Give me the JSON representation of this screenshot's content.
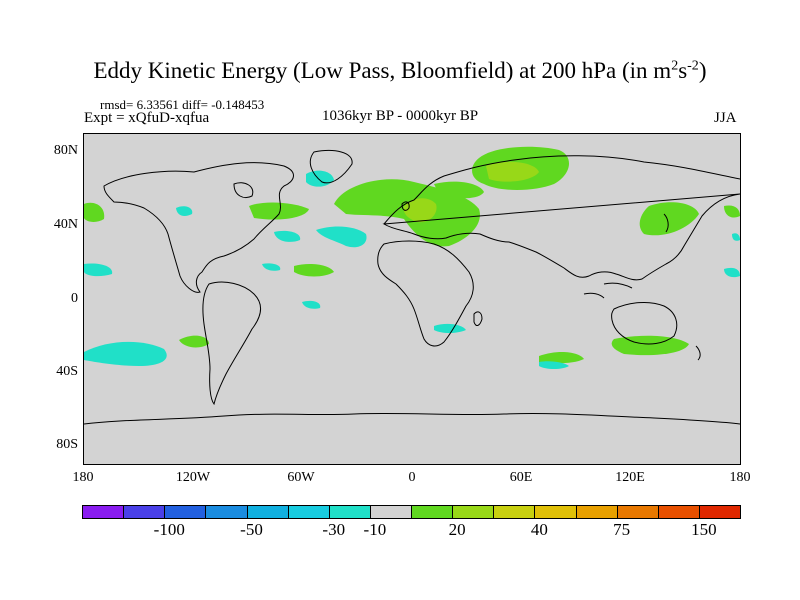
{
  "title": {
    "text": "Eddy Kinetic Energy (Low Pass, Bloomfield) at 200 hPa (in m",
    "exp1": "2",
    "mid": "s",
    "exp2": "-2",
    "close": ")"
  },
  "stats": "rmsd= 6.33561 diff= -0.148453",
  "expt": "Expt = xQfuD-xqfua",
  "period": "1036kyr BP - 0000kyr BP",
  "season": "JJA",
  "lat_labels": [
    "80N",
    "40N",
    "0",
    "40S",
    "80S"
  ],
  "lon_labels": [
    "180",
    "120W",
    "60W",
    "0",
    "60E",
    "120E",
    "180"
  ],
  "colorbar": {
    "colors": [
      "#8a1cf0",
      "#4a40e8",
      "#2260e0",
      "#1a8ce0",
      "#10b0e0",
      "#18cce0",
      "#20e0c8",
      "#d3d3d3",
      "#60d820",
      "#98d818",
      "#c8d010",
      "#e0c008",
      "#e8a000",
      "#e87800",
      "#e85000",
      "#e02800"
    ],
    "labels": [
      "-100",
      "-50",
      "-30",
      "-10",
      "20",
      "40",
      "75",
      "150"
    ]
  },
  "chart_data": {
    "type": "map-contour",
    "title": "Eddy Kinetic Energy (Low Pass, Bloomfield) at 200 hPa (in m2s-2)",
    "subtitle": "1036kyr BP - 0000kyr BP",
    "season": "JJA",
    "rmsd": 6.33561,
    "diff": -0.148453,
    "xlim": [
      -180,
      180
    ],
    "ylim": [
      -90,
      90
    ],
    "levels": [
      -100,
      -50,
      -30,
      -10,
      20,
      40,
      75,
      150
    ],
    "anomalies": [
      {
        "sign": "positive",
        "region": "Europe / North Atlantic",
        "lon": [
          -40,
          40
        ],
        "lat": [
          28,
          60
        ]
      },
      {
        "sign": "positive",
        "region": "Northern Eurasia",
        "lon": [
          40,
          85
        ],
        "lat": [
          58,
          82
        ]
      },
      {
        "sign": "positive",
        "region": "North Pacific / Japan",
        "lon": [
          130,
          180
        ],
        "lat": [
          35,
          55
        ]
      },
      {
        "sign": "positive",
        "region": "Southern Indian Ocean / Australia",
        "lon": [
          70,
          135
        ],
        "lat": [
          -38,
          -30
        ]
      },
      {
        "sign": "positive",
        "region": "Eastern US",
        "lon": [
          -95,
          -65
        ],
        "lat": [
          40,
          48
        ]
      },
      {
        "sign": "negative",
        "region": "South Pacific",
        "lon": [
          -180,
          -130
        ],
        "lat": [
          -40,
          -28
        ]
      },
      {
        "sign": "negative",
        "region": "North Atlantic",
        "lon": [
          -70,
          -45
        ],
        "lat": [
          33,
          43
        ]
      },
      {
        "sign": "negative",
        "region": "Greenland",
        "lon": [
          -50,
          -40
        ],
        "lat": [
          62,
          70
        ]
      }
    ]
  }
}
